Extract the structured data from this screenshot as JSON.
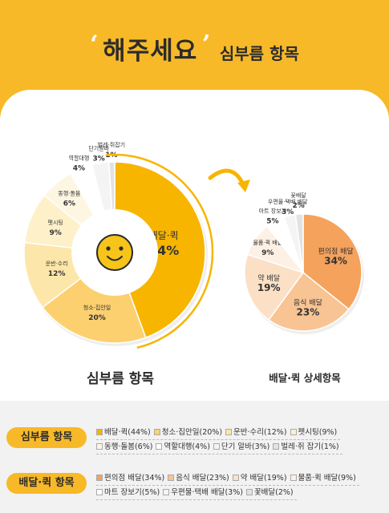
{
  "header": {
    "quote_open": "‘",
    "quote_close": "’",
    "title_main": "해주세요",
    "title_sub": "심부름 항목"
  },
  "chart_data": [
    {
      "type": "pie",
      "title": "심부름 항목",
      "slices": [
        {
          "label": "배달·퀵",
          "value": 44,
          "color": "#f7b500",
          "text": "44%"
        },
        {
          "label": "청소·집안일",
          "value": 20,
          "color": "#fcd06e",
          "text": "20%"
        },
        {
          "label": "운반·수리",
          "value": 12,
          "color": "#fde6a9",
          "text": "12%"
        },
        {
          "label": "펫시팅",
          "value": 9,
          "color": "#fef0c9",
          "text": "9%"
        },
        {
          "label": "동행·돌봄",
          "value": 6,
          "color": "#fdf6e3",
          "text": "6%"
        },
        {
          "label": "역할대행",
          "value": 4,
          "color": "#ffffff",
          "text": "4%"
        },
        {
          "label": "단기알바",
          "value": 3,
          "color": "#f4f4f4",
          "text": "3%"
        },
        {
          "label": "벌레·쥐잡기",
          "value": 1,
          "color": "#e2e2e2",
          "text": "1%"
        }
      ]
    },
    {
      "type": "pie",
      "title": "배달·퀵 상세항목",
      "slices": [
        {
          "label": "편의점 배달",
          "value": 34,
          "color": "#f5a25d",
          "text": "34%"
        },
        {
          "label": "음식 배달",
          "value": 23,
          "color": "#f8c493",
          "text": "23%"
        },
        {
          "label": "약 배달",
          "value": 19,
          "color": "#fbe0c6",
          "text": "19%"
        },
        {
          "label": "물품·퀵 배달",
          "value": 9,
          "color": "#fdf0e4",
          "text": "9%"
        },
        {
          "label": "마트 장보기",
          "value": 5,
          "color": "#ffffff",
          "text": "5%"
        },
        {
          "label": "우편물·택배 배달",
          "value": 3,
          "color": "#f4f4f4",
          "text": "3%"
        },
        {
          "label": "꽃배달",
          "value": 2,
          "color": "#e2e2e2",
          "text": "2%"
        }
      ]
    }
  ],
  "legend": {
    "row1_tag": "심부름 항목",
    "row1_items": [
      "배달·퀵(44%)",
      "청소·집안일(20%)",
      "운반·수리(12%)",
      "펫시팅(9%)",
      "동행·돌봄(6%)",
      "역할대행(4%)",
      "단기 알바(3%)",
      "벌레·쥐 잡기(1%)"
    ],
    "row2_tag": "배달·퀵 항목",
    "row2_items": [
      "편의점 배달(34%)",
      "음식 배달(23%)",
      "약 배달(19%)",
      "물품·퀵 배달(9%)",
      "마트 장보기(5%)",
      "우편물·택배 배달(3%)",
      "꽃배달(2%)"
    ]
  }
}
